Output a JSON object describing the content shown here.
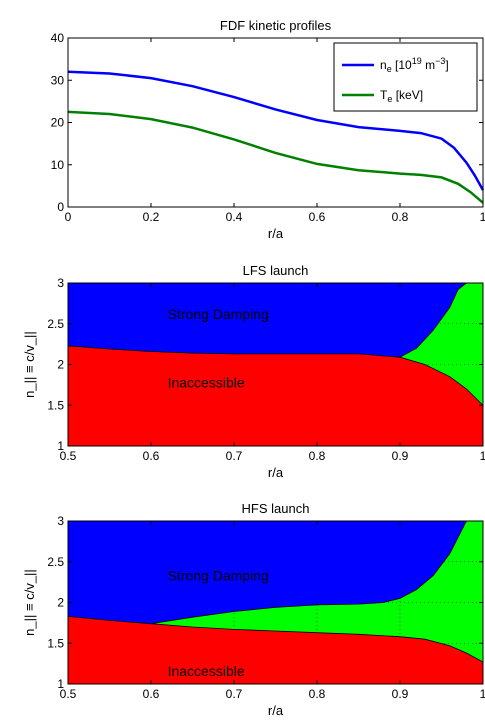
{
  "chart_data": [
    {
      "type": "line",
      "title": "FDF kinetic profiles",
      "xlabel": "r/a",
      "ylabel": "",
      "xlim": [
        0,
        1
      ],
      "ylim": [
        0,
        40
      ],
      "xticks": [
        0,
        0.2,
        0.4,
        0.6,
        0.8,
        1
      ],
      "xtick_labels": [
        "0",
        "0.2",
        "0.4",
        "0.6",
        "0.8",
        "1"
      ],
      "yticks": [
        0,
        10,
        20,
        30,
        40
      ],
      "ytick_labels": [
        "0",
        "10",
        "20",
        "30",
        "40"
      ],
      "legend_position": "top-right",
      "series": [
        {
          "name": "n_e [10^19 m^-3]",
          "legend_main": "n",
          "legend_sub": "e",
          "legend_rest": " [10",
          "legend_sup": "19",
          "legend_rest2": " m",
          "legend_sup2": "−3",
          "legend_end": "]",
          "color": "#0000ff",
          "x": [
            0,
            0.1,
            0.2,
            0.3,
            0.4,
            0.5,
            0.6,
            0.7,
            0.8,
            0.85,
            0.9,
            0.93,
            0.96,
            0.98,
            1.0
          ],
          "y": [
            32,
            31.6,
            30.5,
            28.6,
            26.0,
            23.1,
            20.6,
            18.9,
            18.0,
            17.5,
            16.2,
            14.0,
            10.5,
            7.5,
            4.0
          ]
        },
        {
          "name": "T_e [keV]",
          "legend_main": "T",
          "legend_sub": "e",
          "legend_rest": " [keV]",
          "color": "#008000",
          "x": [
            0,
            0.1,
            0.2,
            0.3,
            0.4,
            0.5,
            0.6,
            0.7,
            0.8,
            0.85,
            0.9,
            0.94,
            0.97,
            1.0
          ],
          "y": [
            22.5,
            22.0,
            20.8,
            18.8,
            16.0,
            12.8,
            10.2,
            8.7,
            7.9,
            7.6,
            7.0,
            5.5,
            3.5,
            1.0
          ]
        }
      ]
    },
    {
      "type": "area",
      "title": "LFS launch",
      "xlabel": "r/a",
      "ylabel": "n_|| ≡ c/v_||",
      "xlim": [
        0.5,
        1
      ],
      "ylim": [
        1,
        3
      ],
      "xticks": [
        0.5,
        0.6,
        0.7,
        0.8,
        0.9,
        1
      ],
      "xtick_labels": [
        "0.5",
        "0.6",
        "0.7",
        "0.8",
        "0.9",
        "1"
      ],
      "yticks": [
        1,
        1.5,
        2,
        2.5,
        3
      ],
      "ytick_labels": [
        "1",
        "1.5",
        "2",
        "2.5",
        "3"
      ],
      "regions": [
        {
          "name": "Strong Damping",
          "color": "#0000ff",
          "label_color": "#ff0000",
          "label_pos": [
            0.62,
            2.62
          ]
        },
        {
          "name": "Inaccessible",
          "color": "#ff0000",
          "label_color": "#0000ff",
          "label_pos": [
            0.62,
            1.78
          ]
        },
        {
          "name": "",
          "color": "#00ff00"
        }
      ],
      "lower_boundary": {
        "x": [
          0.5,
          0.55,
          0.6,
          0.65,
          0.7,
          0.75,
          0.8,
          0.85,
          0.9,
          0.93,
          0.96,
          0.98,
          1.0
        ],
        "y": [
          2.23,
          2.19,
          2.16,
          2.14,
          2.13,
          2.13,
          2.13,
          2.13,
          2.09,
          2.0,
          1.85,
          1.7,
          1.5
        ]
      },
      "upper_boundary": {
        "x": [
          0.9,
          0.92,
          0.94,
          0.96,
          0.97,
          0.98,
          1.0
        ],
        "y": [
          2.09,
          2.2,
          2.42,
          2.7,
          2.92,
          3.0,
          3.0
        ]
      }
    },
    {
      "type": "area",
      "title": "HFS launch",
      "xlabel": "r/a",
      "ylabel": "n_|| ≡ c/v_||",
      "xlim": [
        0.5,
        1
      ],
      "ylim": [
        1,
        3
      ],
      "xticks": [
        0.5,
        0.6,
        0.7,
        0.8,
        0.9,
        1
      ],
      "xtick_labels": [
        "0.5",
        "0.6",
        "0.7",
        "0.8",
        "0.9",
        "1"
      ],
      "yticks": [
        1,
        1.5,
        2,
        2.5,
        3
      ],
      "ytick_labels": [
        "1",
        "1.5",
        "2",
        "2.5",
        "3"
      ],
      "regions": [
        {
          "name": "Strong Damping",
          "color": "#0000ff",
          "label_color": "#ff0000",
          "label_pos": [
            0.62,
            2.33
          ]
        },
        {
          "name": "Inaccessible",
          "color": "#ff0000",
          "label_color": "#0000ff",
          "label_pos": [
            0.62,
            1.16
          ]
        },
        {
          "name": "",
          "color": "#00ff00"
        }
      ],
      "lower_boundary": {
        "x": [
          0.5,
          0.55,
          0.6,
          0.65,
          0.7,
          0.75,
          0.8,
          0.85,
          0.9,
          0.93,
          0.96,
          0.98,
          1.0
        ],
        "y": [
          1.83,
          1.78,
          1.74,
          1.7,
          1.67,
          1.65,
          1.63,
          1.61,
          1.58,
          1.55,
          1.47,
          1.38,
          1.27
        ]
      },
      "upper_boundary": {
        "x": [
          0.6,
          0.65,
          0.7,
          0.75,
          0.8,
          0.85,
          0.88,
          0.9,
          0.92,
          0.94,
          0.96,
          0.97,
          0.98,
          1.0
        ],
        "y": [
          1.74,
          1.82,
          1.89,
          1.94,
          1.97,
          1.98,
          2.0,
          2.05,
          2.16,
          2.33,
          2.6,
          2.8,
          3.0,
          3.0
        ]
      }
    }
  ]
}
